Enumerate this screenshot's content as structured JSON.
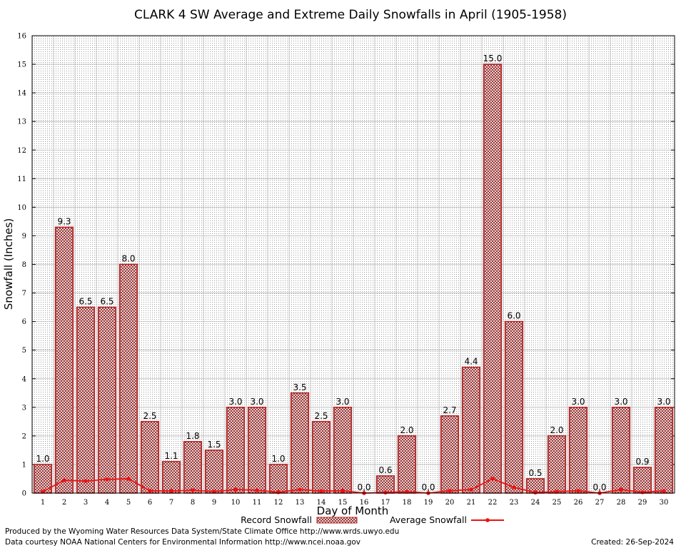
{
  "chart_data": {
    "type": "bar",
    "title": "CLARK 4 SW Average and Extreme Daily Snowfalls in April (1905-1958)",
    "xlabel": "Day of Month",
    "ylabel": "Snowfall (Inches)",
    "ylim": [
      0,
      16
    ],
    "yticks": [
      "0",
      "1",
      "2",
      "3",
      "4",
      "5",
      "6",
      "7",
      "8",
      "9",
      "10",
      "11",
      "12",
      "13",
      "14",
      "15",
      "16"
    ],
    "categories": [
      "1",
      "2",
      "3",
      "4",
      "5",
      "6",
      "7",
      "8",
      "9",
      "10",
      "11",
      "12",
      "13",
      "14",
      "15",
      "16",
      "17",
      "18",
      "19",
      "20",
      "21",
      "22",
      "23",
      "24",
      "25",
      "26",
      "27",
      "28",
      "29",
      "30"
    ],
    "series": [
      {
        "name": "Record Snowfall",
        "type": "bar",
        "color": "#b22222",
        "values": [
          1.0,
          9.3,
          6.5,
          6.5,
          8.0,
          2.5,
          1.1,
          1.8,
          1.5,
          3.0,
          3.0,
          1.0,
          3.5,
          2.5,
          3.0,
          0.0,
          0.6,
          2.0,
          0.0,
          2.7,
          4.4,
          15.0,
          6.0,
          0.5,
          2.0,
          3.0,
          0.0,
          3.0,
          0.9,
          3.0
        ],
        "labels": [
          "1.0",
          "9.3",
          "6.5",
          "6.5",
          "8.0",
          "2.5",
          "1.1",
          "1.8",
          "1.5",
          "3.0",
          "3.0",
          "1.0",
          "3.5",
          "2.5",
          "3.0",
          "0.0",
          "0.6",
          "2.0",
          "0.0",
          "2.7",
          "4.4",
          "15.0",
          "6.0",
          "0.5",
          "2.0",
          "3.0",
          "0.0",
          "3.0",
          "0.9",
          "3.0"
        ]
      },
      {
        "name": "Average Snowfall",
        "type": "line",
        "color": "#ee1111",
        "values": [
          0.05,
          0.45,
          0.42,
          0.48,
          0.5,
          0.08,
          0.07,
          0.1,
          0.05,
          0.12,
          0.1,
          0.03,
          0.12,
          0.07,
          0.08,
          0.0,
          0.02,
          0.05,
          0.0,
          0.08,
          0.12,
          0.5,
          0.2,
          0.02,
          0.05,
          0.08,
          0.0,
          0.12,
          0.03,
          0.07
        ]
      }
    ],
    "grid": true,
    "legend": "bottom-center"
  },
  "footer": {
    "produced_by": "Produced by the Wyoming Water Resources Data System/State Climate Office http://www.wrds.uwyo.edu",
    "courtesy": "Data courtesy NOAA National Centers for Environmental Information http://www.ncei.noaa.gov",
    "created": "Created:  26-Sep-2024"
  }
}
